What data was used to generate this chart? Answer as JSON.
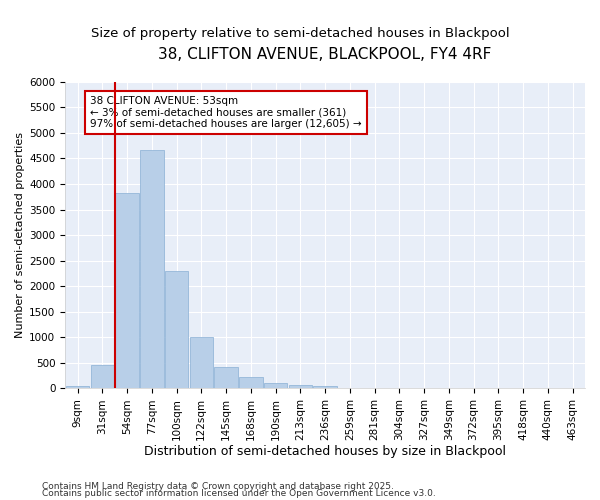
{
  "title1": "38, CLIFTON AVENUE, BLACKPOOL, FY4 4RF",
  "title2": "Size of property relative to semi-detached houses in Blackpool",
  "xlabel": "Distribution of semi-detached houses by size in Blackpool",
  "ylabel": "Number of semi-detached properties",
  "categories": [
    "9sqm",
    "31sqm",
    "54sqm",
    "77sqm",
    "100sqm",
    "122sqm",
    "145sqm",
    "168sqm",
    "190sqm",
    "213sqm",
    "236sqm",
    "259sqm",
    "281sqm",
    "304sqm",
    "327sqm",
    "349sqm",
    "372sqm",
    "395sqm",
    "418sqm",
    "440sqm",
    "463sqm"
  ],
  "values": [
    40,
    450,
    3820,
    4670,
    2290,
    1000,
    415,
    230,
    100,
    70,
    55,
    5,
    0,
    0,
    0,
    0,
    0,
    0,
    0,
    0,
    0
  ],
  "bar_color": "#b8cfe8",
  "bar_edge_color": "#89afd4",
  "vline_color": "#cc0000",
  "vline_pos": 2,
  "annotation_text": "38 CLIFTON AVENUE: 53sqm\n← 3% of semi-detached houses are smaller (361)\n97% of semi-detached houses are larger (12,605) →",
  "annotation_box_edgecolor": "#cc0000",
  "ylim": [
    0,
    6000
  ],
  "yticks": [
    0,
    500,
    1000,
    1500,
    2000,
    2500,
    3000,
    3500,
    4000,
    4500,
    5000,
    5500,
    6000
  ],
  "plot_bg_color": "#e8eef8",
  "fig_bg_color": "#ffffff",
  "grid_color": "#ffffff",
  "footer1": "Contains HM Land Registry data © Crown copyright and database right 2025.",
  "footer2": "Contains public sector information licensed under the Open Government Licence v3.0.",
  "title1_fontsize": 11,
  "title2_fontsize": 9.5,
  "xlabel_fontsize": 9,
  "ylabel_fontsize": 8,
  "tick_fontsize": 7.5,
  "footer_fontsize": 6.5,
  "annot_fontsize": 7.5
}
